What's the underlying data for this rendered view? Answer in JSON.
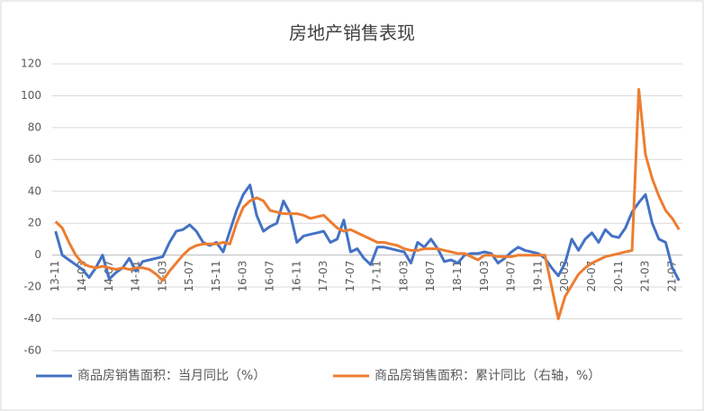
{
  "chart_data": {
    "type": "line",
    "title": "房地产销售表现",
    "categories": [
      "13-11",
      null,
      null,
      null,
      "14-03",
      null,
      null,
      null,
      "14-07",
      null,
      null,
      null,
      "14-11",
      null,
      null,
      null,
      "15-03",
      null,
      null,
      null,
      "15-07",
      null,
      null,
      null,
      "15-11",
      null,
      null,
      null,
      "16-03",
      null,
      null,
      null,
      "16-07",
      null,
      null,
      null,
      "16-11",
      null,
      null,
      null,
      "17-03",
      null,
      null,
      null,
      "17-07",
      null,
      null,
      null,
      "17-11",
      null,
      null,
      null,
      "18-03",
      null,
      null,
      null,
      "18-07",
      null,
      null,
      null,
      "18-11",
      null,
      null,
      null,
      "19-03",
      null,
      null,
      null,
      "19-07",
      null,
      null,
      null,
      "19-11",
      null,
      null,
      null,
      "20-03",
      null,
      null,
      null,
      "20-07",
      null,
      null,
      null,
      "20-11",
      null,
      null,
      null,
      "21-03",
      null,
      null,
      null,
      "21-07",
      null
    ],
    "series": [
      {
        "name": "商品房销售面积：当月同比（%）",
        "color": "#4472c4",
        "values": [
          15,
          0,
          -3,
          -6,
          -9,
          -14,
          -8,
          0,
          -15,
          -11,
          -8,
          -2,
          -10,
          -4,
          -3,
          -2,
          -1,
          8,
          15,
          16,
          19,
          15,
          8,
          6,
          8,
          2,
          15,
          28,
          38,
          44,
          25,
          15,
          18,
          20,
          34,
          26,
          8,
          12,
          13,
          14,
          15,
          8,
          10,
          22,
          2,
          4,
          -2,
          -6,
          5,
          5,
          4,
          3,
          2,
          -5,
          8,
          5,
          10,
          4,
          -4,
          -3,
          -5,
          0,
          1,
          1,
          2,
          1,
          -5,
          -2,
          2,
          5,
          3,
          2,
          1,
          -2,
          -8,
          -13,
          -5,
          10,
          3,
          10,
          14,
          8,
          16,
          12,
          11,
          17,
          27,
          33,
          38,
          20,
          10,
          8,
          -8,
          -16
        ]
      },
      {
        "name": "商品房销售面积：累计同比（右轴，%）",
        "color": "#ed7d31",
        "values": [
          21,
          17,
          8,
          0,
          -5,
          -7,
          -8,
          -7,
          -8,
          -9,
          -8,
          -9,
          -8,
          -8,
          -9,
          -12,
          -16,
          -10,
          -5,
          0,
          4,
          6,
          7,
          7,
          7,
          8,
          7,
          20,
          30,
          34,
          36,
          34,
          28,
          27,
          26,
          26,
          26,
          25,
          23,
          24,
          25,
          21,
          17,
          15,
          16,
          14,
          12,
          10,
          8,
          8,
          7,
          6,
          4,
          3,
          3,
          4,
          4,
          4,
          3,
          2,
          1,
          1,
          -1,
          -3,
          0,
          0,
          -1,
          -1,
          -1,
          0,
          0,
          0,
          0,
          0,
          -20,
          -40,
          -26,
          -19,
          -12,
          -8,
          -5,
          -3,
          -1,
          0,
          1,
          2,
          3,
          104,
          63,
          48,
          37,
          28,
          23,
          16
        ]
      }
    ],
    "ylim": [
      -60,
      120
    ],
    "yticks": [
      -60,
      -40,
      -20,
      0,
      20,
      40,
      60,
      80,
      100,
      120
    ],
    "grid": true
  }
}
